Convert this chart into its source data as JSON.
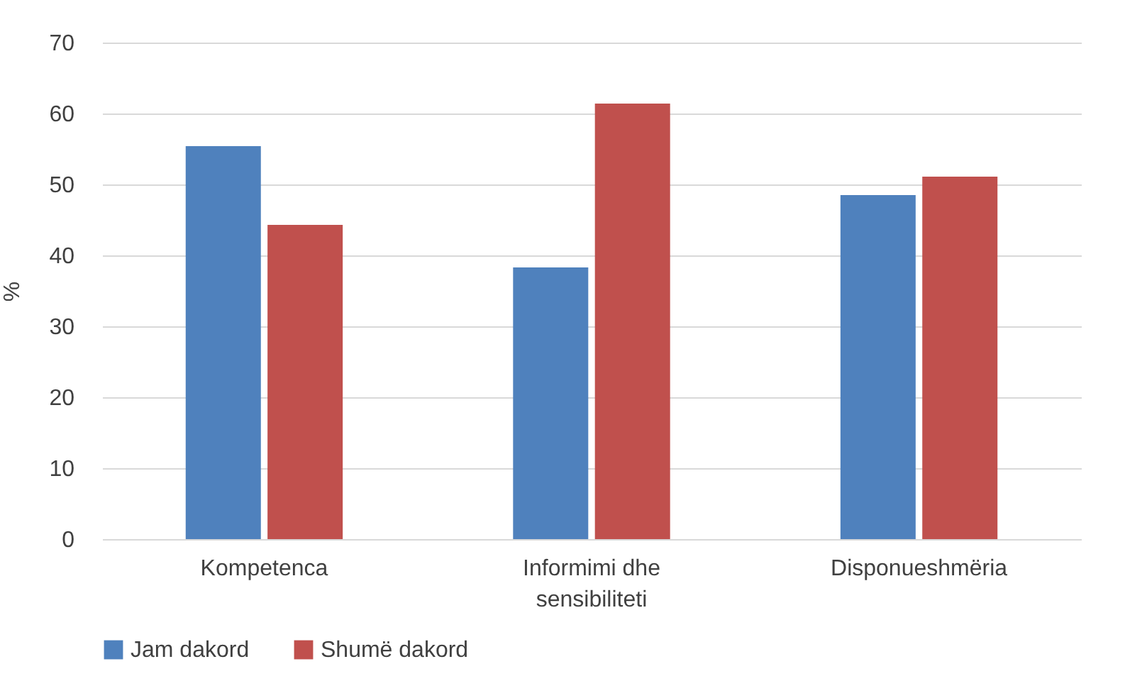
{
  "chart_data": {
    "type": "bar",
    "ylabel": "%",
    "categories": [
      "Kompetenca",
      "Informimi dhe sensibiliteti",
      "Disponueshmëria"
    ],
    "series": [
      {
        "name": "Jam dakord",
        "color": "#4f81bd",
        "values": [
          55.4,
          38.3,
          48.5
        ]
      },
      {
        "name": "Shumë dakord",
        "color": "#c0504d",
        "values": [
          44.3,
          61.4,
          51.1
        ]
      }
    ],
    "ylim": [
      0,
      70
    ],
    "yticks": [
      0,
      10,
      20,
      30,
      40,
      50,
      60,
      70
    ],
    "grid": "y",
    "legend": "bottom"
  }
}
